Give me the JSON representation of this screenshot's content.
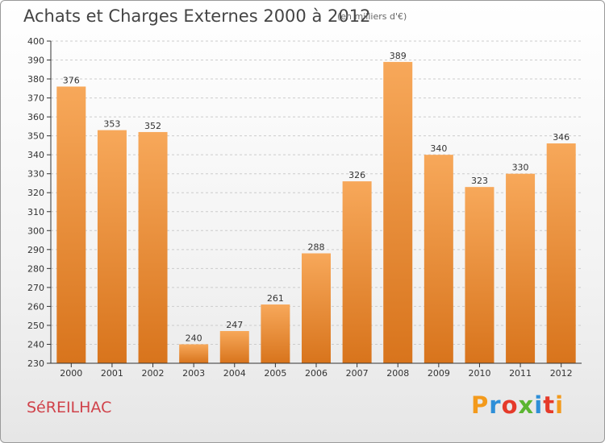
{
  "header": {
    "title": "Achats et Charges Externes 2000 à 2012",
    "unit": "(en milliers d'€)"
  },
  "footer": {
    "commune": "SéREILHAC"
  },
  "brand": {
    "name": "Proxiti",
    "colors": [
      "#f39a1c",
      "#2e8fd8",
      "#e53a2a",
      "#5bb531",
      "#2e8fd8",
      "#e53a2a",
      "#f39a1c"
    ]
  },
  "colors": {
    "bar_top": "#f7a85a",
    "bar_bottom": "#d8741c",
    "grid": "#cccccc",
    "axis": "#333333"
  },
  "chart_data": {
    "type": "bar",
    "title": "Achats et Charges Externes 2000 à 2012",
    "subtitle": "(en milliers d'€)",
    "categories": [
      "2000",
      "2001",
      "2002",
      "2003",
      "2004",
      "2005",
      "2006",
      "2007",
      "2008",
      "2009",
      "2010",
      "2011",
      "2012"
    ],
    "values": [
      376,
      353,
      352,
      240,
      247,
      261,
      288,
      326,
      389,
      340,
      323,
      330,
      346
    ],
    "ylim": [
      230,
      400
    ],
    "yticks": [
      230,
      240,
      250,
      260,
      270,
      280,
      290,
      300,
      310,
      320,
      330,
      340,
      350,
      360,
      370,
      380,
      390,
      400
    ],
    "grid": true,
    "legend": "none"
  }
}
